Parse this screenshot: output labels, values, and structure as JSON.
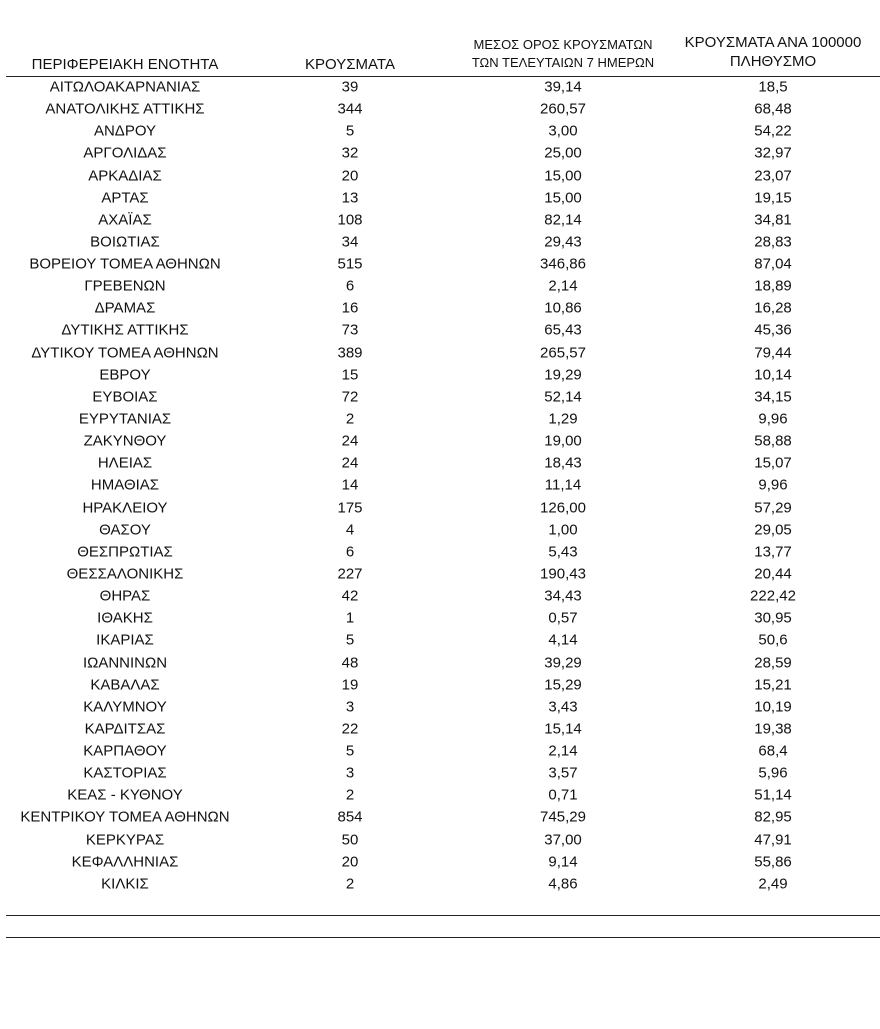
{
  "table": {
    "headers": [
      [
        "ΠΕΡΙΦΕΡΕΙΑΚΗ ΕΝΟΤΗΤΑ"
      ],
      [
        "ΚΡΟΥΣΜΑΤΑ"
      ],
      [
        "ΜΕΣΟΣ ΟΡΟΣ ΚΡΟΥΣΜΑΤΩΝ",
        "ΤΩΝ ΤΕΛΕΥΤΑΙΩΝ 7 ΗΜΕΡΩΝ"
      ],
      [
        "ΚΡΟΥΣΜΑΤΑ ΑΝΑ 100000",
        "ΠΛΗΘΥΣΜΟ"
      ]
    ],
    "rows": [
      [
        "ΑΙΤΩΛΟΑΚΑΡΝΑΝΙΑΣ",
        "39",
        "39,14",
        "18,5"
      ],
      [
        "ΑΝΑΤΟΛΙΚΗΣ ΑΤΤΙΚΗΣ",
        "344",
        "260,57",
        "68,48"
      ],
      [
        "ΑΝΔΡΟΥ",
        "5",
        "3,00",
        "54,22"
      ],
      [
        "ΑΡΓΟΛΙΔΑΣ",
        "32",
        "25,00",
        "32,97"
      ],
      [
        "ΑΡΚΑΔΙΑΣ",
        "20",
        "15,00",
        "23,07"
      ],
      [
        "ΑΡΤΑΣ",
        "13",
        "15,00",
        "19,15"
      ],
      [
        "ΑΧΑΪΑΣ",
        "108",
        "82,14",
        "34,81"
      ],
      [
        "ΒΟΙΩΤΙΑΣ",
        "34",
        "29,43",
        "28,83"
      ],
      [
        "ΒΟΡΕΙΟΥ ΤΟΜΕΑ ΑΘΗΝΩΝ",
        "515",
        "346,86",
        "87,04"
      ],
      [
        "ΓΡΕΒΕΝΩΝ",
        "6",
        "2,14",
        "18,89"
      ],
      [
        "ΔΡΑΜΑΣ",
        "16",
        "10,86",
        "16,28"
      ],
      [
        "ΔΥΤΙΚΗΣ ΑΤΤΙΚΗΣ",
        "73",
        "65,43",
        "45,36"
      ],
      [
        "ΔΥΤΙΚΟΥ ΤΟΜΕΑ ΑΘΗΝΩΝ",
        "389",
        "265,57",
        "79,44"
      ],
      [
        "ΕΒΡΟΥ",
        "15",
        "19,29",
        "10,14"
      ],
      [
        "ΕΥΒΟΙΑΣ",
        "72",
        "52,14",
        "34,15"
      ],
      [
        "ΕΥΡΥΤΑΝΙΑΣ",
        "2",
        "1,29",
        "9,96"
      ],
      [
        "ΖΑΚΥΝΘΟΥ",
        "24",
        "19,00",
        "58,88"
      ],
      [
        "ΗΛΕΙΑΣ",
        "24",
        "18,43",
        "15,07"
      ],
      [
        "ΗΜΑΘΙΑΣ",
        "14",
        "11,14",
        "9,96"
      ],
      [
        "ΗΡΑΚΛΕΙΟΥ",
        "175",
        "126,00",
        "57,29"
      ],
      [
        "ΘΑΣΟΥ",
        "4",
        "1,00",
        "29,05"
      ],
      [
        "ΘΕΣΠΡΩΤΙΑΣ",
        "6",
        "5,43",
        "13,77"
      ],
      [
        "ΘΕΣΣΑΛΟΝΙΚΗΣ",
        "227",
        "190,43",
        "20,44"
      ],
      [
        "ΘΗΡΑΣ",
        "42",
        "34,43",
        "222,42"
      ],
      [
        "ΙΘΑΚΗΣ",
        "1",
        "0,57",
        "30,95"
      ],
      [
        "ΙΚΑΡΙΑΣ",
        "5",
        "4,14",
        "50,6"
      ],
      [
        "ΙΩΑΝΝΙΝΩΝ",
        "48",
        "39,29",
        "28,59"
      ],
      [
        "ΚΑΒΑΛΑΣ",
        "19",
        "15,29",
        "15,21"
      ],
      [
        "ΚΑΛΥΜΝΟΥ",
        "3",
        "3,43",
        "10,19"
      ],
      [
        "ΚΑΡΔΙΤΣΑΣ",
        "22",
        "15,14",
        "19,38"
      ],
      [
        "ΚΑΡΠΑΘΟΥ",
        "5",
        "2,14",
        "68,4"
      ],
      [
        "ΚΑΣΤΟΡΙΑΣ",
        "3",
        "3,57",
        "5,96"
      ],
      [
        "ΚΕΑΣ - ΚΥΘΝΟΥ",
        "2",
        "0,71",
        "51,14"
      ],
      [
        "ΚΕΝΤΡΙΚΟΥ ΤΟΜΕΑ ΑΘΗΝΩΝ",
        "854",
        "745,29",
        "82,95"
      ],
      [
        "ΚΕΡΚΥΡΑΣ",
        "50",
        "37,00",
        "47,91"
      ],
      [
        "ΚΕΦΑΛΛΗΝΙΑΣ",
        "20",
        "9,14",
        "55,86"
      ],
      [
        "ΚΙΛΚΙΣ",
        "2",
        "4,86",
        "2,49"
      ]
    ]
  }
}
